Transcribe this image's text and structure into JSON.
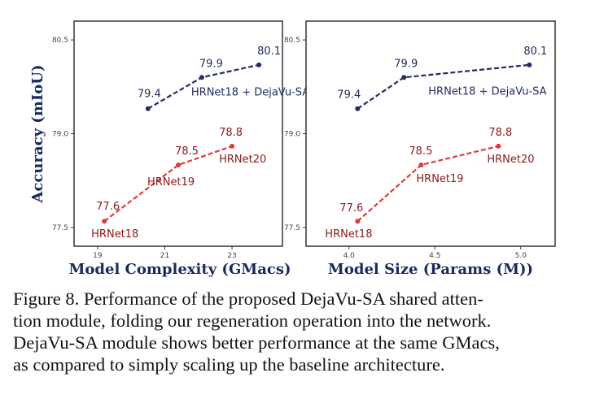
{
  "caption": {
    "lines": [
      "Figure 8. Performance of the proposed DejaVu-SA shared atten-",
      "tion module, folding our regeneration operation into the network.",
      "DejaVu-SA module shows better performance at the same GMacs,",
      "as compared to simply scaling up the baseline architecture."
    ]
  },
  "colors": {
    "blue": "#232b63",
    "red": "#e0393c",
    "red_text": "#8b1a1a",
    "axis_label": "#1a2a5e"
  },
  "chart_data": [
    {
      "type": "line",
      "title": "",
      "xlabel": "Model Complexity (GMacs)",
      "ylabel": "Accuracy (mIoU)",
      "xlim": [
        18.3,
        24.5
      ],
      "ylim": [
        77.2,
        80.8
      ],
      "xticks": [
        "19",
        "21",
        "23"
      ],
      "xtick_values": [
        19,
        21,
        23
      ],
      "yticks": [
        "77.5",
        "79.0",
        "80.5"
      ],
      "ytick_values": [
        77.5,
        79.0,
        80.5
      ],
      "series": [
        {
          "name": "DejaVu-SA",
          "color": "blue",
          "style": "dashed",
          "x": [
            20.5,
            22.1,
            23.8
          ],
          "y": [
            79.4,
            79.9,
            80.1
          ],
          "value_labels": [
            "79.4",
            "79.9",
            "80.1"
          ],
          "point_names": [
            "",
            "HRNet18 + DejaVu-SA",
            ""
          ]
        },
        {
          "name": "HRNet",
          "color": "red",
          "style": "dashed",
          "x": [
            19.2,
            21.4,
            23.0
          ],
          "y": [
            77.6,
            78.5,
            78.8
          ],
          "value_labels": [
            "77.6",
            "78.5",
            "78.8"
          ],
          "point_names": [
            "HRNet18",
            "HRNet19",
            "HRNet20"
          ]
        }
      ]
    },
    {
      "type": "line",
      "title": "",
      "xlabel": "Model Size (Params (M))",
      "ylabel": "",
      "xlim": [
        3.75,
        5.2
      ],
      "ylim": [
        77.2,
        80.8
      ],
      "xticks": [
        "4.0",
        "4.5",
        "5.0"
      ],
      "xtick_values": [
        4.0,
        4.5,
        5.0
      ],
      "yticks": [
        "77.5",
        "79.0",
        "80.5"
      ],
      "ytick_values": [
        77.5,
        79.0,
        80.5
      ],
      "series": [
        {
          "name": "DejaVu-SA",
          "color": "blue",
          "style": "dashed",
          "x": [
            4.05,
            4.32,
            5.05
          ],
          "y": [
            79.4,
            79.9,
            80.1
          ],
          "value_labels": [
            "79.4",
            "79.9",
            "80.1"
          ],
          "point_names": [
            "",
            "HRNet18 + DejaVu-SA",
            ""
          ]
        },
        {
          "name": "HRNet",
          "color": "red",
          "style": "dashed",
          "x": [
            4.05,
            4.42,
            4.87
          ],
          "y": [
            77.6,
            78.5,
            78.8
          ],
          "value_labels": [
            "77.6",
            "78.5",
            "78.8"
          ],
          "point_names": [
            "HRNet18",
            "HRNet19",
            "HRNet20"
          ]
        }
      ]
    }
  ]
}
